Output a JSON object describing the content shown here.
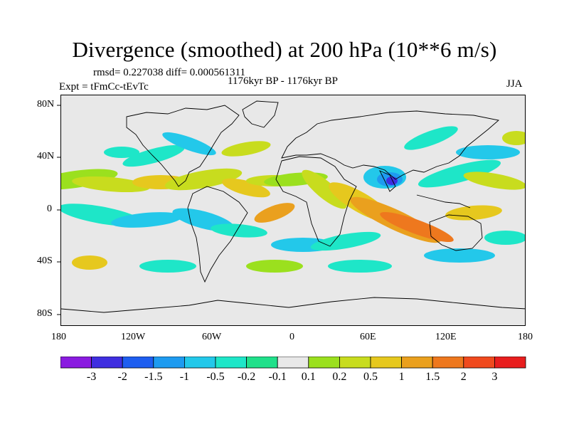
{
  "chart_data": {
    "type": "heatmap",
    "title": "Divergence (smoothed) at 200 hPa (10**6 m/s)",
    "stats": "rmsd= 0.227038  diff= 0.000561311",
    "period": "1176kyr BP - 1176kyr BP",
    "experiment": "Expt = tFmCc-tEvTc",
    "season": "JJA",
    "x_ticks": [
      "180",
      "120W",
      "60W",
      "0",
      "60E",
      "120E",
      "180"
    ],
    "y_ticks": [
      "80N",
      "40N",
      "0",
      "40S",
      "80S"
    ],
    "colorbar": {
      "labels": [
        "-3",
        "-2",
        "-1.5",
        "-1",
        "-0.5",
        "-0.2",
        "-0.1",
        "0.1",
        "0.2",
        "0.5",
        "1",
        "1.5",
        "2",
        "3"
      ],
      "colors": [
        "#8a1be0",
        "#3f2ee0",
        "#1e5ef0",
        "#1e9bf0",
        "#23c8ea",
        "#1ee6c8",
        "#20e08a",
        "#e8e8e8",
        "#9be01e",
        "#c8dc1e",
        "#e6c81e",
        "#eaa01e",
        "#ee781e",
        "#f04a1e",
        "#e81e1e"
      ]
    },
    "map_background": "#e8e8e8"
  }
}
